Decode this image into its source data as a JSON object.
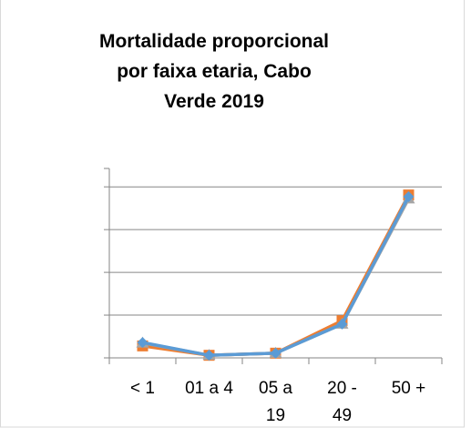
{
  "chart_data": {
    "type": "line",
    "title": "Mortalidade proporcional\npor faixa etaria, Cabo\nVerde 2019",
    "categories": [
      "< 1",
      "01 a 4",
      "05 a\n19",
      "20 -\n49",
      "50 +"
    ],
    "series": [
      {
        "color": "#ed7d31",
        "marker": "square",
        "values": [
          2.8,
          0.6,
          1.1,
          8.7,
          38.1
        ]
      },
      {
        "color": "#a5a5a5",
        "marker": "triangle",
        "values": [
          3.5,
          0.6,
          1.1,
          7.9,
          37.2
        ]
      },
      {
        "color": "#5b9bd5",
        "marker": "diamond",
        "values": [
          3.6,
          0.6,
          1.1,
          7.9,
          37.7
        ]
      }
    ],
    "ylim": [
      0,
      44.3
    ],
    "yticks": [
      0,
      10,
      20,
      30,
      40
    ],
    "grid": true
  }
}
